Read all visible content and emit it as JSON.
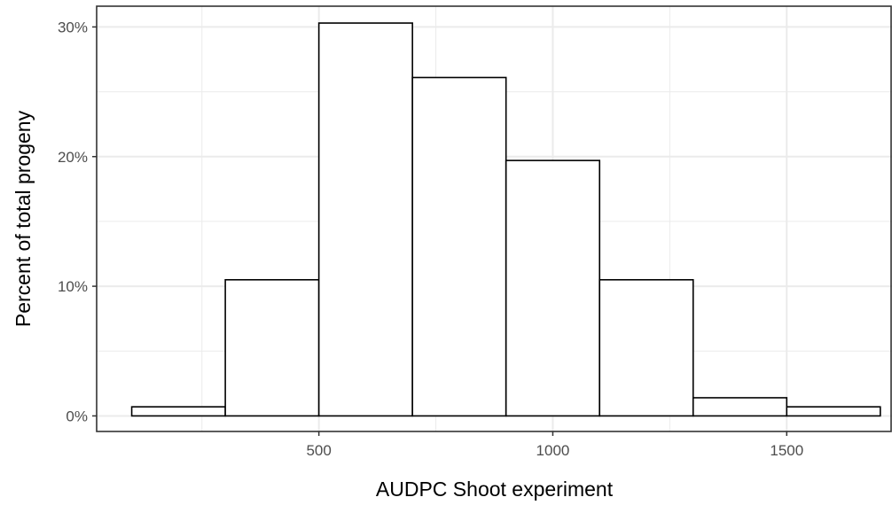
{
  "chart_data": {
    "type": "bar",
    "subtype": "histogram",
    "title": "",
    "xlabel": "AUDPC Shoot experiment",
    "ylabel": "Percent of total progeny",
    "xlim": [
      25,
      1725
    ],
    "ylim": [
      -1.2,
      31.6
    ],
    "x_ticks": [
      500,
      1000,
      1500
    ],
    "x_tick_labels": [
      "500",
      "1000",
      "1500"
    ],
    "y_ticks": [
      0,
      10,
      20,
      30
    ],
    "y_tick_labels": [
      "0%",
      "10%",
      "20%",
      "30%"
    ],
    "grid": true,
    "bin_edges": [
      100,
      300,
      500,
      700,
      900,
      1100,
      1300,
      1500,
      1700
    ],
    "values": [
      0.7,
      10.5,
      30.3,
      26.1,
      19.7,
      10.5,
      1.4,
      0.7
    ],
    "bar_fill": "#ffffff",
    "bar_stroke": "#000000",
    "grid_color": "#ebebeb",
    "panel_border_color": "#333333"
  }
}
